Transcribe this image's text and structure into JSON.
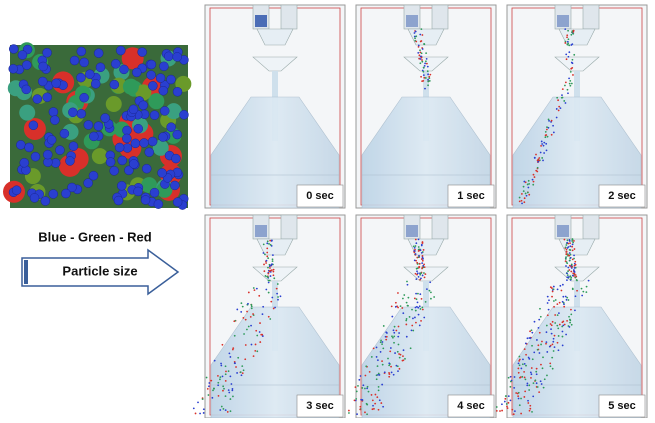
{
  "legend": {
    "order": "Blue - Green - Red",
    "arrow_label": "Particle size"
  },
  "panels": [
    {
      "time": "0 sec"
    },
    {
      "time": "1 sec"
    },
    {
      "time": "2 sec"
    },
    {
      "time": "3 sec"
    },
    {
      "time": "4 sec"
    },
    {
      "time": "5 sec"
    }
  ]
}
